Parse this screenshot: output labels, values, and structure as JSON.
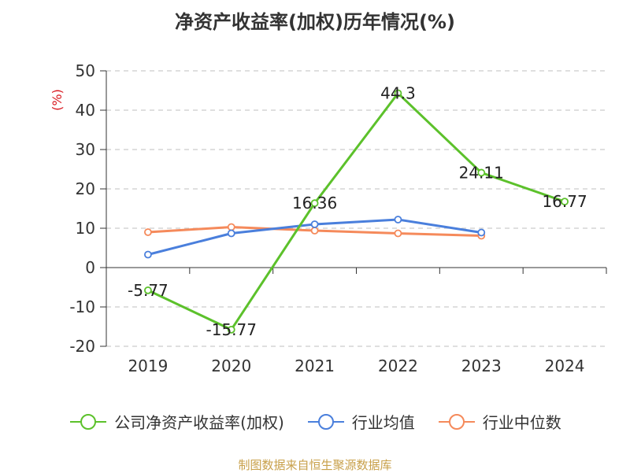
{
  "chart_data": {
    "type": "line",
    "title": "净资产收益率(加权)历年情况(%)",
    "ylabel": "(%)",
    "xlabel": "",
    "categories": [
      "2019",
      "2020",
      "2021",
      "2022",
      "2023",
      "2024"
    ],
    "ylim": [
      -20,
      50
    ],
    "yticks": [
      -20,
      -10,
      0,
      10,
      20,
      30,
      40,
      50
    ],
    "grid": true,
    "legend_position": "bottom",
    "series": [
      {
        "name": "公司净资产收益率(加权)",
        "color": "#5cc12b",
        "values": [
          -5.77,
          -15.77,
          16.36,
          44.3,
          24.11,
          16.77
        ],
        "labels": [
          "-5.77",
          "-15.77",
          "16.36",
          "44.3",
          "24.11",
          "16.77"
        ]
      },
      {
        "name": "行业均值",
        "color": "#4a7fdc",
        "values": [
          3.3,
          8.7,
          11.0,
          12.2,
          8.9,
          null
        ],
        "labels": []
      },
      {
        "name": "行业中位数",
        "color": "#f58a5b",
        "values": [
          9.0,
          10.3,
          9.4,
          8.7,
          8.1,
          null
        ],
        "labels": []
      }
    ]
  },
  "footer": {
    "source": "制图数据来自恒生聚源数据库"
  },
  "colors": {
    "ylabel": "#d9181e",
    "grid": "#cccccc",
    "axis": "#333333",
    "text": "#333333"
  }
}
